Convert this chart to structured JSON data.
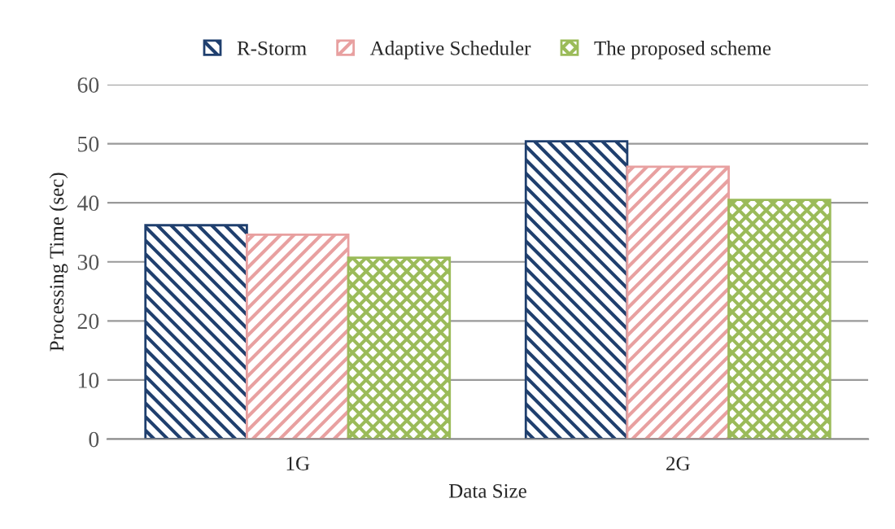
{
  "chart_data": {
    "type": "bar",
    "xlabel": "Data Size",
    "ylabel": "Processing Time (sec)",
    "categories": [
      "1G",
      "2G"
    ],
    "series": [
      {
        "name": "R-Storm",
        "color": "#1f3f6e",
        "values": [
          36.2,
          50.4
        ]
      },
      {
        "name": "Adaptive Scheduler",
        "color": "#e8a0a0",
        "values": [
          34.6,
          46.1
        ]
      },
      {
        "name": "The proposed scheme",
        "color": "#9bbb59",
        "values": [
          30.7,
          40.5
        ]
      }
    ],
    "ylim": [
      0,
      60
    ],
    "yticks": [
      0,
      10,
      20,
      30,
      40,
      50,
      60
    ],
    "grid": "y",
    "legend": "top"
  }
}
